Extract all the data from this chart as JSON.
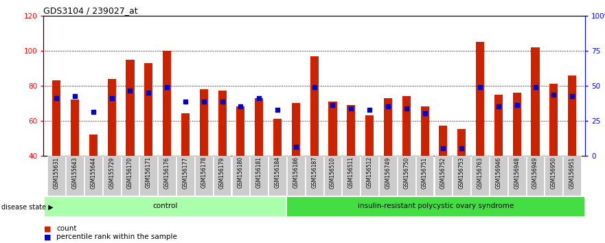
{
  "title": "GDS3104 / 239027_at",
  "samples": [
    "GSM155631",
    "GSM155643",
    "GSM155644",
    "GSM155729",
    "GSM156170",
    "GSM156171",
    "GSM156176",
    "GSM156177",
    "GSM156178",
    "GSM156179",
    "GSM156180",
    "GSM156181",
    "GSM156184",
    "GSM156186",
    "GSM156187",
    "GSM156510",
    "GSM156511",
    "GSM156512",
    "GSM156749",
    "GSM156750",
    "GSM156751",
    "GSM156752",
    "GSM156753",
    "GSM156763",
    "GSM156946",
    "GSM156948",
    "GSM156949",
    "GSM156950",
    "GSM156951"
  ],
  "red_values": [
    83,
    72,
    52,
    84,
    95,
    93,
    100,
    64,
    78,
    77,
    68,
    73,
    61,
    70,
    97,
    71,
    69,
    63,
    73,
    74,
    68,
    57,
    55,
    105,
    75,
    76,
    102,
    81,
    86
  ],
  "blue_values": [
    73,
    74,
    65,
    73,
    77,
    76,
    79,
    71,
    71,
    71,
    68,
    73,
    66,
    45,
    79,
    69,
    67,
    66,
    68,
    67,
    64,
    44,
    44,
    79,
    68,
    69,
    79,
    75,
    74
  ],
  "group_labels": [
    "control",
    "insulin-resistant polycystic ovary syndrome"
  ],
  "group_sizes": [
    13,
    16
  ],
  "group_colors": [
    "#aaffaa",
    "#44dd44"
  ],
  "ylim_left": [
    40,
    120
  ],
  "ylim_right": [
    0,
    100
  ],
  "yticks_left": [
    40,
    60,
    80,
    100,
    120
  ],
  "yticks_right": [
    0,
    25,
    50,
    75,
    100
  ],
  "ytick_labels_right": [
    "0",
    "25",
    "50",
    "75",
    "100%"
  ],
  "bar_color": "#cc2200",
  "dot_color": "#0000cc",
  "legend_items": [
    "count",
    "percentile rank within the sample"
  ],
  "disease_state_label": "disease state"
}
